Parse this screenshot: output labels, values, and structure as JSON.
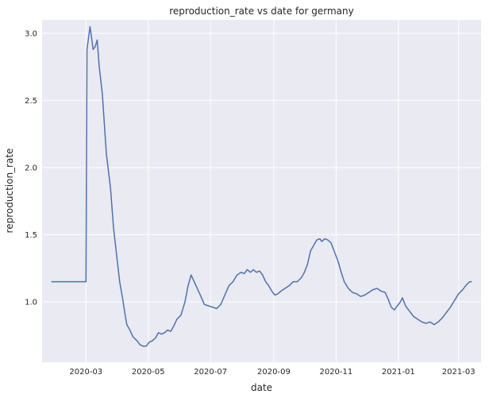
{
  "chart_data": {
    "type": "line",
    "title": "reproduction_rate vs date   for germany",
    "xlabel": "date",
    "ylabel": "reproduction_rate",
    "x_ticks": [
      "2020-03",
      "2020-05",
      "2020-07",
      "2020-09",
      "2020-11",
      "2021-01",
      "2021-03"
    ],
    "y_ticks": [
      "1.0",
      "1.5",
      "2.0",
      "2.5",
      "3.0"
    ],
    "xlim": [
      "2020-01-18",
      "2021-03-23"
    ],
    "ylim": [
      0.55,
      3.1
    ],
    "grid": true,
    "background_color": "#eaeaf2",
    "grid_color": "#ffffff",
    "line_color": "#4c72b0",
    "series": [
      {
        "points": [
          [
            "2020-01-27",
            1.15
          ],
          [
            "2020-03-01",
            1.15
          ],
          [
            "2020-03-02",
            2.88
          ],
          [
            "2020-03-05",
            3.05
          ],
          [
            "2020-03-08",
            2.88
          ],
          [
            "2020-03-10",
            2.9
          ],
          [
            "2020-03-12",
            2.95
          ],
          [
            "2020-03-14",
            2.75
          ],
          [
            "2020-03-17",
            2.55
          ],
          [
            "2020-03-21",
            2.1
          ],
          [
            "2020-03-25",
            1.85
          ],
          [
            "2020-03-28",
            1.55
          ],
          [
            "2020-03-31",
            1.35
          ],
          [
            "2020-04-03",
            1.15
          ],
          [
            "2020-04-06",
            1.02
          ],
          [
            "2020-04-08",
            0.92
          ],
          [
            "2020-04-10",
            0.83
          ],
          [
            "2020-04-13",
            0.79
          ],
          [
            "2020-04-16",
            0.74
          ],
          [
            "2020-04-20",
            0.71
          ],
          [
            "2020-04-23",
            0.68
          ],
          [
            "2020-04-26",
            0.67
          ],
          [
            "2020-04-29",
            0.67
          ],
          [
            "2020-05-02",
            0.7
          ],
          [
            "2020-05-05",
            0.71
          ],
          [
            "2020-05-08",
            0.73
          ],
          [
            "2020-05-11",
            0.77
          ],
          [
            "2020-05-14",
            0.76
          ],
          [
            "2020-05-17",
            0.77
          ],
          [
            "2020-05-20",
            0.79
          ],
          [
            "2020-05-23",
            0.78
          ],
          [
            "2020-05-26",
            0.82
          ],
          [
            "2020-05-29",
            0.87
          ],
          [
            "2020-06-02",
            0.9
          ],
          [
            "2020-06-06",
            1.0
          ],
          [
            "2020-06-09",
            1.12
          ],
          [
            "2020-06-12",
            1.2
          ],
          [
            "2020-06-15",
            1.15
          ],
          [
            "2020-06-18",
            1.1
          ],
          [
            "2020-06-21",
            1.05
          ],
          [
            "2020-06-25",
            0.98
          ],
          [
            "2020-06-29",
            0.97
          ],
          [
            "2020-07-03",
            0.96
          ],
          [
            "2020-07-07",
            0.95
          ],
          [
            "2020-07-11",
            0.98
          ],
          [
            "2020-07-15",
            1.05
          ],
          [
            "2020-07-19",
            1.12
          ],
          [
            "2020-07-23",
            1.15
          ],
          [
            "2020-07-27",
            1.2
          ],
          [
            "2020-07-31",
            1.22
          ],
          [
            "2020-08-03",
            1.21
          ],
          [
            "2020-08-06",
            1.24
          ],
          [
            "2020-08-09",
            1.22
          ],
          [
            "2020-08-12",
            1.24
          ],
          [
            "2020-08-15",
            1.22
          ],
          [
            "2020-08-18",
            1.23
          ],
          [
            "2020-08-21",
            1.2
          ],
          [
            "2020-08-24",
            1.15
          ],
          [
            "2020-08-27",
            1.12
          ],
          [
            "2020-08-30",
            1.08
          ],
          [
            "2020-09-02",
            1.05
          ],
          [
            "2020-09-05",
            1.06
          ],
          [
            "2020-09-08",
            1.08
          ],
          [
            "2020-09-12",
            1.1
          ],
          [
            "2020-09-16",
            1.12
          ],
          [
            "2020-09-20",
            1.15
          ],
          [
            "2020-09-24",
            1.15
          ],
          [
            "2020-09-28",
            1.18
          ],
          [
            "2020-10-01",
            1.22
          ],
          [
            "2020-10-04",
            1.28
          ],
          [
            "2020-10-07",
            1.38
          ],
          [
            "2020-10-10",
            1.42
          ],
          [
            "2020-10-13",
            1.46
          ],
          [
            "2020-10-16",
            1.47
          ],
          [
            "2020-10-18",
            1.45
          ],
          [
            "2020-10-21",
            1.47
          ],
          [
            "2020-10-24",
            1.46
          ],
          [
            "2020-10-27",
            1.44
          ],
          [
            "2020-10-30",
            1.38
          ],
          [
            "2020-11-03",
            1.3
          ],
          [
            "2020-11-06",
            1.22
          ],
          [
            "2020-11-09",
            1.15
          ],
          [
            "2020-11-13",
            1.1
          ],
          [
            "2020-11-17",
            1.07
          ],
          [
            "2020-11-21",
            1.06
          ],
          [
            "2020-11-25",
            1.04
          ],
          [
            "2020-11-29",
            1.05
          ],
          [
            "2020-12-03",
            1.07
          ],
          [
            "2020-12-07",
            1.09
          ],
          [
            "2020-12-11",
            1.1
          ],
          [
            "2020-12-15",
            1.08
          ],
          [
            "2020-12-19",
            1.07
          ],
          [
            "2020-12-22",
            1.02
          ],
          [
            "2020-12-25",
            0.96
          ],
          [
            "2020-12-28",
            0.94
          ],
          [
            "2020-12-31",
            0.97
          ],
          [
            "2021-01-03",
            1.0
          ],
          [
            "2021-01-05",
            1.03
          ],
          [
            "2021-01-08",
            0.97
          ],
          [
            "2021-01-12",
            0.93
          ],
          [
            "2021-01-16",
            0.89
          ],
          [
            "2021-01-20",
            0.87
          ],
          [
            "2021-01-24",
            0.85
          ],
          [
            "2021-01-28",
            0.84
          ],
          [
            "2021-02-01",
            0.85
          ],
          [
            "2021-02-05",
            0.83
          ],
          [
            "2021-02-09",
            0.85
          ],
          [
            "2021-02-13",
            0.88
          ],
          [
            "2021-02-17",
            0.92
          ],
          [
            "2021-02-21",
            0.96
          ],
          [
            "2021-02-25",
            1.01
          ],
          [
            "2021-03-01",
            1.06
          ],
          [
            "2021-03-05",
            1.09
          ],
          [
            "2021-03-09",
            1.13
          ],
          [
            "2021-03-12",
            1.15
          ],
          [
            "2021-03-14",
            1.15
          ]
        ]
      }
    ]
  }
}
